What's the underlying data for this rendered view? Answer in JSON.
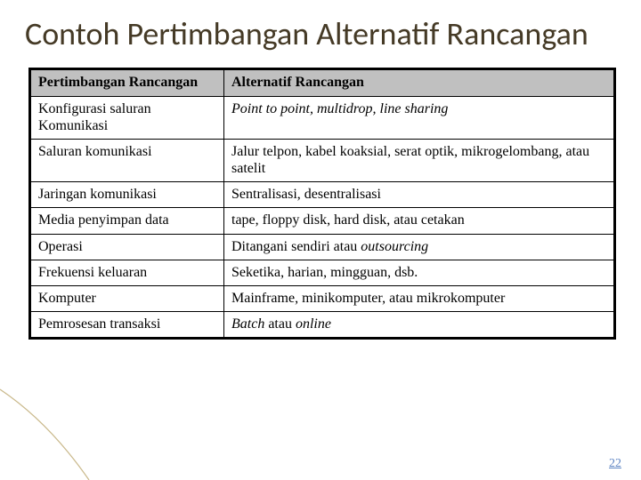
{
  "title": "Contoh Pertimbangan Alternatif Rancangan",
  "page_number": "22",
  "table": {
    "header_bg": "#c0c0c0",
    "border_color": "#000000",
    "columns": [
      "Pertimbangan Rancangan",
      "Alternatif Rancangan"
    ],
    "rows": [
      {
        "c1": "Konfigurasi saluran Komunikasi",
        "c2_html": "<span class=\"italic\">Point to point, multidrop, line sharing</span>"
      },
      {
        "c1": "Saluran komunikasi",
        "c2_html": "Jalur telpon, kabel koaksial, serat optik, mikrogelombang, atau satelit"
      },
      {
        "c1": "Jaringan komunikasi",
        "c2_html": "Sentralisasi, desentralisasi"
      },
      {
        "c1": "Media penyimpan data",
        "c2_html": "tape, floppy disk, hard disk, atau cetakan"
      },
      {
        "c1": "Operasi",
        "c2_html": "Ditangani sendiri atau <span class=\"italic\">outsourcing</span>"
      },
      {
        "c1": "Frekuensi keluaran",
        "c2_html": "Seketika, harian, mingguan, dsb."
      },
      {
        "c1": "Komputer",
        "c2_html": "Mainframe, minikomputer, atau mikrokomputer"
      },
      {
        "c1": "Pemrosesan transaksi",
        "c2_html": "<span class=\"italic\">Batch</span> atau <span class=\"italic\">online</span>"
      }
    ]
  },
  "accent_color": "#5d84c3",
  "corner_line_color": "#c9b88a"
}
